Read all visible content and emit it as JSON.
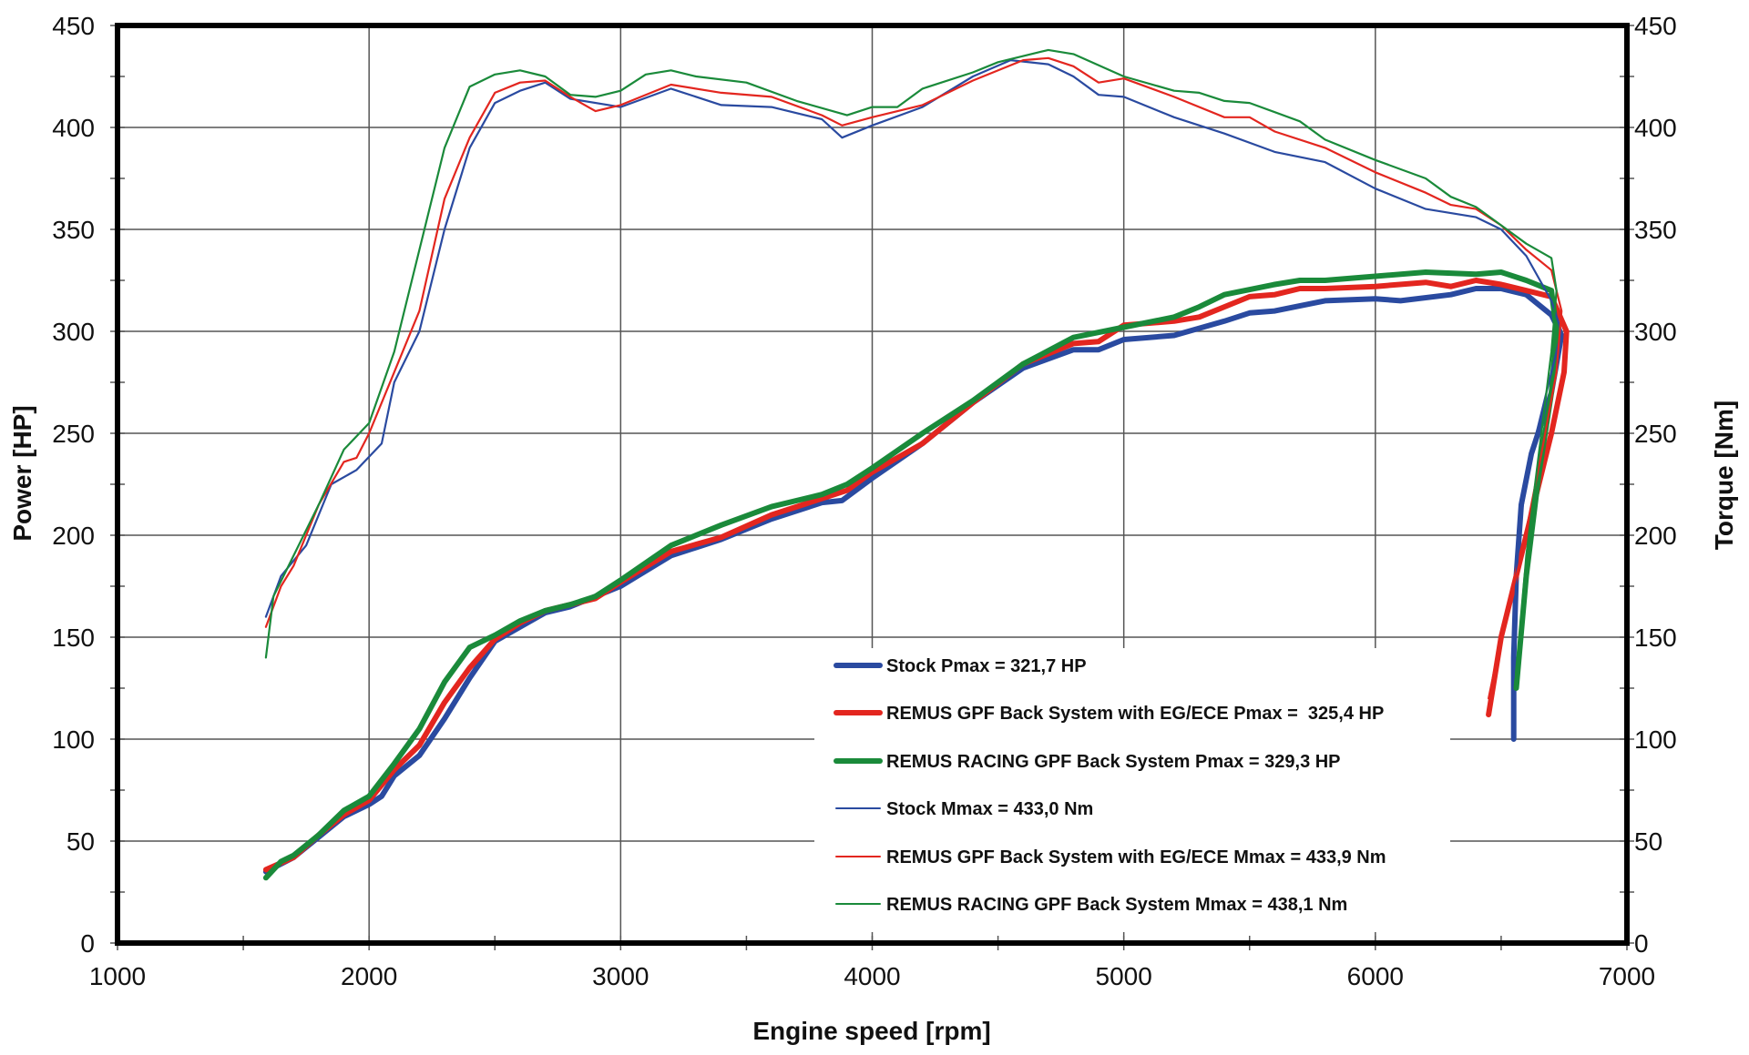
{
  "chart_data": {
    "type": "line",
    "xlabel": "Engine speed [rpm]",
    "ylabel": "Power [HP]",
    "y2label": "Torque [Nm]",
    "xlim": [
      1000,
      7000
    ],
    "ylim": [
      0,
      450
    ],
    "y2lim": [
      0,
      450
    ],
    "x_ticks": [
      1000,
      2000,
      3000,
      4000,
      5000,
      6000,
      7000
    ],
    "y_ticks": [
      0,
      50,
      100,
      150,
      200,
      250,
      300,
      350,
      400,
      450
    ],
    "grid": true,
    "legend_position": "bottom-right",
    "series": [
      {
        "name": "Stock Pmax = 321,7 HP",
        "axis": "left",
        "color": "#2a4aa0",
        "weight": "thick",
        "points": [
          [
            1590,
            35
          ],
          [
            1700,
            42
          ],
          [
            1800,
            52
          ],
          [
            1900,
            62
          ],
          [
            2000,
            68
          ],
          [
            2050,
            72
          ],
          [
            2100,
            82
          ],
          [
            2200,
            92
          ],
          [
            2300,
            110
          ],
          [
            2400,
            130
          ],
          [
            2500,
            148
          ],
          [
            2600,
            155
          ],
          [
            2700,
            162
          ],
          [
            2800,
            165
          ],
          [
            2900,
            170
          ],
          [
            3000,
            175
          ],
          [
            3200,
            190
          ],
          [
            3400,
            198
          ],
          [
            3600,
            208
          ],
          [
            3800,
            216
          ],
          [
            3880,
            217
          ],
          [
            4000,
            228
          ],
          [
            4200,
            245
          ],
          [
            4400,
            265
          ],
          [
            4600,
            282
          ],
          [
            4800,
            291
          ],
          [
            4900,
            291
          ],
          [
            5000,
            296
          ],
          [
            5200,
            298
          ],
          [
            5400,
            305
          ],
          [
            5500,
            309
          ],
          [
            5600,
            310
          ],
          [
            5800,
            315
          ],
          [
            6000,
            316
          ],
          [
            6100,
            315
          ],
          [
            6300,
            318
          ],
          [
            6400,
            321
          ],
          [
            6500,
            321
          ],
          [
            6600,
            318
          ],
          [
            6700,
            308
          ],
          [
            6740,
            298
          ],
          [
            6700,
            270
          ],
          [
            6620,
            240
          ],
          [
            6580,
            215
          ],
          [
            6560,
            180
          ],
          [
            6550,
            140
          ],
          [
            6550,
            100
          ]
        ]
      },
      {
        "name": "REMUS GPF Back System with EG/ECE Pmax =  325,4 HP",
        "axis": "left",
        "color": "#e3261f",
        "weight": "thick",
        "points": [
          [
            1590,
            36
          ],
          [
            1700,
            42
          ],
          [
            1800,
            53
          ],
          [
            1900,
            63
          ],
          [
            2000,
            70
          ],
          [
            2100,
            85
          ],
          [
            2200,
            97
          ],
          [
            2300,
            118
          ],
          [
            2400,
            135
          ],
          [
            2500,
            149
          ],
          [
            2600,
            157
          ],
          [
            2700,
            163
          ],
          [
            2800,
            166
          ],
          [
            2900,
            169
          ],
          [
            3000,
            177
          ],
          [
            3200,
            192
          ],
          [
            3400,
            199
          ],
          [
            3600,
            210
          ],
          [
            3800,
            218
          ],
          [
            3900,
            222
          ],
          [
            4000,
            231
          ],
          [
            4200,
            245
          ],
          [
            4400,
            265
          ],
          [
            4600,
            284
          ],
          [
            4800,
            294
          ],
          [
            4900,
            295
          ],
          [
            5000,
            303
          ],
          [
            5200,
            305
          ],
          [
            5300,
            307
          ],
          [
            5400,
            312
          ],
          [
            5500,
            317
          ],
          [
            5600,
            318
          ],
          [
            5700,
            321
          ],
          [
            5800,
            321
          ],
          [
            6000,
            322
          ],
          [
            6200,
            324
          ],
          [
            6300,
            322
          ],
          [
            6400,
            325
          ],
          [
            6500,
            323
          ],
          [
            6600,
            320
          ],
          [
            6700,
            317
          ],
          [
            6760,
            300
          ],
          [
            6750,
            280
          ],
          [
            6700,
            250
          ],
          [
            6600,
            200
          ],
          [
            6500,
            150
          ],
          [
            6450,
            112
          ]
        ]
      },
      {
        "name": "REMUS RACING GPF Back System Pmax = 329,3 HP",
        "axis": "left",
        "color": "#1a8a3a",
        "weight": "thick",
        "points": [
          [
            1590,
            32
          ],
          [
            1650,
            40
          ],
          [
            1700,
            43
          ],
          [
            1800,
            53
          ],
          [
            1900,
            65
          ],
          [
            2000,
            72
          ],
          [
            2100,
            88
          ],
          [
            2200,
            105
          ],
          [
            2300,
            128
          ],
          [
            2400,
            145
          ],
          [
            2500,
            151
          ],
          [
            2600,
            158
          ],
          [
            2700,
            163
          ],
          [
            2800,
            166
          ],
          [
            2900,
            170
          ],
          [
            3000,
            178
          ],
          [
            3200,
            195
          ],
          [
            3400,
            205
          ],
          [
            3600,
            214
          ],
          [
            3800,
            220
          ],
          [
            3900,
            225
          ],
          [
            4000,
            233
          ],
          [
            4200,
            250
          ],
          [
            4400,
            266
          ],
          [
            4600,
            284
          ],
          [
            4800,
            297
          ],
          [
            5000,
            302
          ],
          [
            5200,
            307
          ],
          [
            5300,
            312
          ],
          [
            5400,
            318
          ],
          [
            5600,
            323
          ],
          [
            5700,
            325
          ],
          [
            5800,
            325
          ],
          [
            6000,
            327
          ],
          [
            6200,
            329
          ],
          [
            6400,
            328
          ],
          [
            6500,
            329
          ],
          [
            6600,
            325
          ],
          [
            6700,
            320
          ],
          [
            6720,
            300
          ],
          [
            6700,
            270
          ],
          [
            6650,
            230
          ],
          [
            6600,
            180
          ],
          [
            6560,
            125
          ]
        ]
      },
      {
        "name": "Stock Mmax = 433,0 Nm",
        "axis": "right",
        "color": "#2a4aa0",
        "weight": "thin",
        "points": [
          [
            1590,
            160
          ],
          [
            1650,
            180
          ],
          [
            1750,
            195
          ],
          [
            1850,
            225
          ],
          [
            1950,
            232
          ],
          [
            2050,
            245
          ],
          [
            2100,
            275
          ],
          [
            2200,
            300
          ],
          [
            2300,
            350
          ],
          [
            2400,
            390
          ],
          [
            2500,
            412
          ],
          [
            2600,
            418
          ],
          [
            2700,
            422
          ],
          [
            2800,
            414
          ],
          [
            3000,
            410
          ],
          [
            3200,
            419
          ],
          [
            3400,
            411
          ],
          [
            3600,
            410
          ],
          [
            3800,
            404
          ],
          [
            3880,
            395
          ],
          [
            4000,
            401
          ],
          [
            4200,
            410
          ],
          [
            4400,
            425
          ],
          [
            4550,
            433
          ],
          [
            4700,
            431
          ],
          [
            4800,
            425
          ],
          [
            4900,
            416
          ],
          [
            5000,
            415
          ],
          [
            5200,
            405
          ],
          [
            5400,
            397
          ],
          [
            5600,
            388
          ],
          [
            5800,
            383
          ],
          [
            6000,
            370
          ],
          [
            6200,
            360
          ],
          [
            6400,
            356
          ],
          [
            6500,
            350
          ],
          [
            6600,
            337
          ],
          [
            6700,
            315
          ],
          [
            6740,
            300
          ],
          [
            6680,
            270
          ],
          [
            6620,
            240
          ],
          [
            6580,
            210
          ],
          [
            6560,
            180
          ],
          [
            6550,
            150
          ],
          [
            6550,
            130
          ]
        ]
      },
      {
        "name": "REMUS GPF Back System with EG/ECE Mmax = 433,9 Nm",
        "axis": "right",
        "color": "#e3261f",
        "weight": "thin",
        "points": [
          [
            1590,
            155
          ],
          [
            1650,
            175
          ],
          [
            1700,
            185
          ],
          [
            1800,
            215
          ],
          [
            1900,
            236
          ],
          [
            1950,
            238
          ],
          [
            2000,
            250
          ],
          [
            2100,
            280
          ],
          [
            2200,
            310
          ],
          [
            2300,
            365
          ],
          [
            2400,
            395
          ],
          [
            2500,
            417
          ],
          [
            2600,
            422
          ],
          [
            2700,
            423
          ],
          [
            2800,
            415
          ],
          [
            2900,
            408
          ],
          [
            3000,
            411
          ],
          [
            3200,
            421
          ],
          [
            3400,
            417
          ],
          [
            3600,
            415
          ],
          [
            3800,
            406
          ],
          [
            3880,
            401
          ],
          [
            4000,
            405
          ],
          [
            4200,
            411
          ],
          [
            4400,
            423
          ],
          [
            4600,
            433
          ],
          [
            4700,
            434
          ],
          [
            4800,
            430
          ],
          [
            4900,
            422
          ],
          [
            5000,
            424
          ],
          [
            5200,
            415
          ],
          [
            5400,
            405
          ],
          [
            5500,
            405
          ],
          [
            5600,
            398
          ],
          [
            5800,
            390
          ],
          [
            6000,
            378
          ],
          [
            6200,
            368
          ],
          [
            6300,
            362
          ],
          [
            6400,
            360
          ],
          [
            6500,
            352
          ],
          [
            6600,
            340
          ],
          [
            6700,
            330
          ],
          [
            6740,
            310
          ],
          [
            6720,
            280
          ],
          [
            6660,
            240
          ],
          [
            6580,
            190
          ],
          [
            6500,
            150
          ],
          [
            6450,
            120
          ]
        ]
      },
      {
        "name": "REMUS RACING GPF Back System Mmax = 438,1 Nm",
        "axis": "right",
        "color": "#1a8a3a",
        "weight": "thin",
        "points": [
          [
            1590,
            140
          ],
          [
            1620,
            170
          ],
          [
            1700,
            190
          ],
          [
            1800,
            215
          ],
          [
            1900,
            242
          ],
          [
            2000,
            255
          ],
          [
            2100,
            290
          ],
          [
            2200,
            340
          ],
          [
            2300,
            390
          ],
          [
            2400,
            420
          ],
          [
            2500,
            426
          ],
          [
            2600,
            428
          ],
          [
            2700,
            425
          ],
          [
            2800,
            416
          ],
          [
            2900,
            415
          ],
          [
            3000,
            418
          ],
          [
            3100,
            426
          ],
          [
            3200,
            428
          ],
          [
            3300,
            425
          ],
          [
            3500,
            422
          ],
          [
            3700,
            413
          ],
          [
            3900,
            406
          ],
          [
            4000,
            410
          ],
          [
            4100,
            410
          ],
          [
            4200,
            419
          ],
          [
            4400,
            427
          ],
          [
            4500,
            432
          ],
          [
            4700,
            438
          ],
          [
            4800,
            436
          ],
          [
            5000,
            425
          ],
          [
            5200,
            418
          ],
          [
            5300,
            417
          ],
          [
            5400,
            413
          ],
          [
            5500,
            412
          ],
          [
            5700,
            403
          ],
          [
            5800,
            394
          ],
          [
            6000,
            384
          ],
          [
            6200,
            375
          ],
          [
            6300,
            366
          ],
          [
            6400,
            361
          ],
          [
            6500,
            352
          ],
          [
            6600,
            343
          ],
          [
            6700,
            336
          ],
          [
            6720,
            320
          ],
          [
            6700,
            290
          ],
          [
            6650,
            240
          ],
          [
            6600,
            190
          ],
          [
            6560,
            130
          ]
        ]
      }
    ]
  }
}
